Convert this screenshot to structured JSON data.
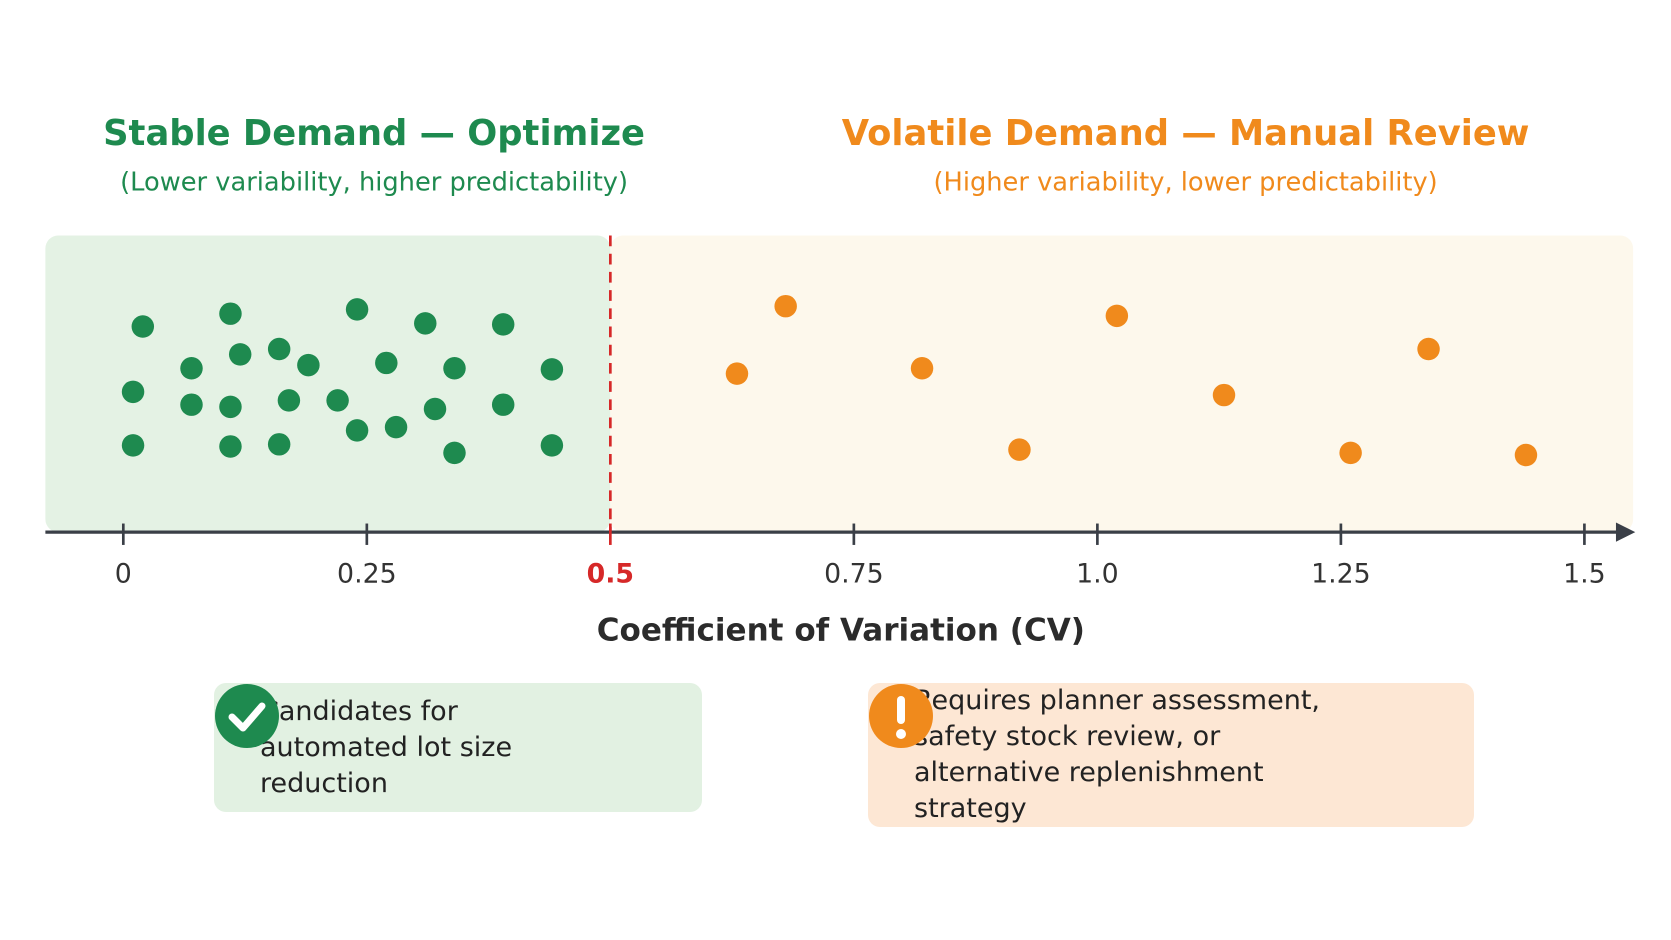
{
  "chart_data": {
    "type": "strip",
    "x_label": "Coefficient of Variation (CV)",
    "xlim": [
      -0.08,
      1.55
    ],
    "xticks": [
      0,
      0.25,
      0.5,
      0.75,
      {
        "value": 1,
        "label": "1.0"
      },
      1.25,
      1.5
    ],
    "threshold": 0.5,
    "threshold_color": "#d62828",
    "series": [
      {
        "name": "Stable Demand — Optimize",
        "subtitle": "(Lower variability, higher predictability)",
        "color": "#1e8a4f",
        "panel_color": "#e4f2e4",
        "note": "Candidates for automated lot size reduction",
        "note_color": "#e2f1e2",
        "x": [
          0.02,
          0.11,
          0.24,
          0.31,
          0.39,
          0.07,
          0.12,
          0.16,
          0.19,
          0.27,
          0.34,
          0.44,
          0.01,
          0.07,
          0.11,
          0.17,
          0.22,
          0.32,
          0.39,
          0.01,
          0.11,
          0.16,
          0.24,
          0.28,
          0.34,
          0.44
        ]
      },
      {
        "name": "Volatile Demand — Manual Review",
        "subtitle": "(Higher variability, lower predictability)",
        "color": "#f08a1c",
        "panel_color": "#fdf8ec",
        "note": "Requires planner assessment, safety stock review, or alternative replenishment strategy",
        "note_color": "#fde7d4",
        "x": [
          0.63,
          0.68,
          0.82,
          0.92,
          1.02,
          1.13,
          1.26,
          1.34,
          1.44
        ]
      }
    ]
  }
}
